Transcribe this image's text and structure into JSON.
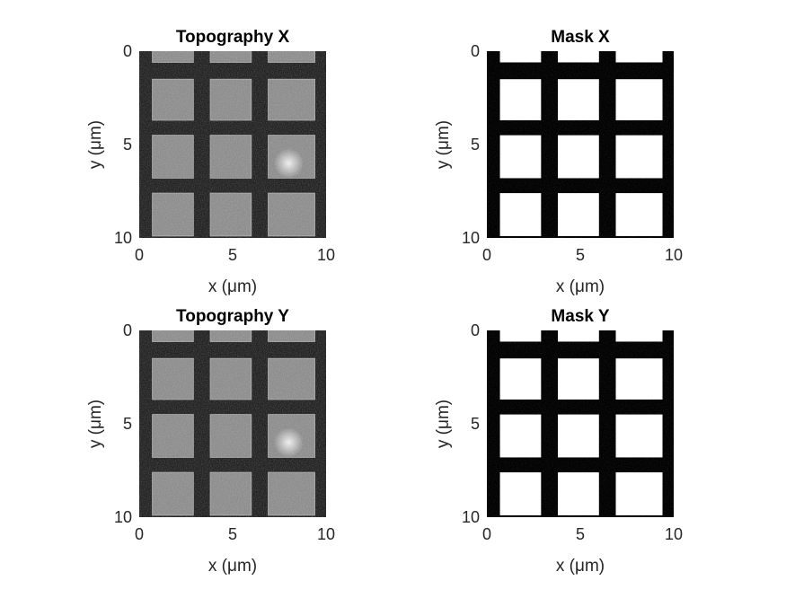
{
  "chart_data": [
    {
      "type": "heatmap",
      "title": "Topography X",
      "colormap": "gray",
      "image_kind": "topography",
      "xlabel": "x (μm)",
      "ylabel": "y (μm)",
      "xlim": [
        0,
        10
      ],
      "ylim": [
        0,
        10
      ],
      "y_direction": "reversed",
      "xticks": [
        0,
        5,
        10
      ],
      "yticks": [
        0,
        5,
        10
      ],
      "grid": false
    },
    {
      "type": "heatmap",
      "title": "Mask X",
      "colormap": "binary",
      "image_kind": "mask",
      "xlabel": "x (μm)",
      "ylabel": "y (μm)",
      "xlim": [
        0,
        10
      ],
      "ylim": [
        0,
        10
      ],
      "y_direction": "reversed",
      "xticks": [
        0,
        5,
        10
      ],
      "yticks": [
        0,
        5,
        10
      ],
      "grid": false
    },
    {
      "type": "heatmap",
      "title": "Topography Y",
      "colormap": "gray",
      "image_kind": "topography",
      "xlabel": "x (μm)",
      "ylabel": "y (μm)",
      "xlim": [
        0,
        10
      ],
      "ylim": [
        0,
        10
      ],
      "y_direction": "reversed",
      "xticks": [
        0,
        5,
        10
      ],
      "yticks": [
        0,
        5,
        10
      ],
      "grid": false
    },
    {
      "type": "heatmap",
      "title": "Mask Y",
      "colormap": "binary",
      "image_kind": "mask",
      "xlabel": "x (μm)",
      "ylabel": "y (μm)",
      "xlim": [
        0,
        10
      ],
      "ylim": [
        0,
        10
      ],
      "y_direction": "reversed",
      "xticks": [
        0,
        5,
        10
      ],
      "yticks": [
        0,
        5,
        10
      ],
      "grid": false
    }
  ],
  "pattern": {
    "square_columns_um": [
      [
        0.7,
        2.9
      ],
      [
        3.8,
        6.0
      ],
      [
        6.9,
        9.4
      ]
    ],
    "square_rows_um": [
      [
        -0.6,
        0.6
      ],
      [
        1.5,
        3.7
      ],
      [
        4.5,
        6.8
      ],
      [
        7.6,
        9.9
      ]
    ],
    "bright_spot_um": [
      8.0,
      6.0
    ]
  },
  "colors": {
    "background": "#ffffff",
    "axis_text": "#262626",
    "title_text": "#000000",
    "topo_dark": "#222222",
    "topo_square": "#8c8c8c",
    "mask_on": "#ffffff",
    "mask_off": "#000000"
  }
}
